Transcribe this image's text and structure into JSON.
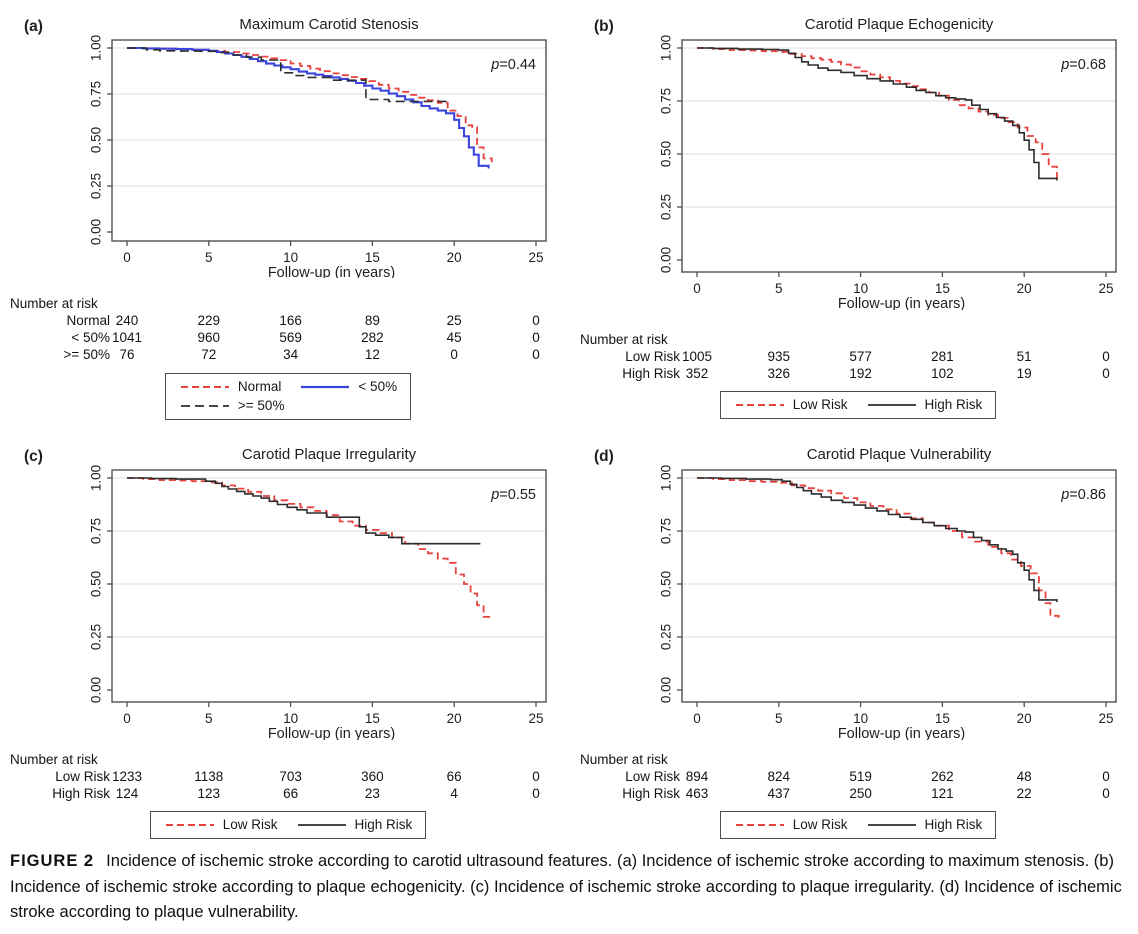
{
  "caption": {
    "label": "FIGURE 2",
    "text": "Incidence of ischemic stroke according to carotid ultrasound features. (a) Incidence of ischemic stroke according to maximum stenosis. (b) Incidence of ischemic stroke according to plaque echogenicity. (c) Incidence of ischemic stroke according to plaque irregularity. (d) Incidence of ischemic stroke according to plaque vulnerability."
  },
  "colors": {
    "red_dashed_series": "#e8413e",
    "blue_solid_series": "#3b45dd",
    "black_series": "#2d2d2d",
    "gridline": "#e3e3e3",
    "frame": "#4f4f4f"
  },
  "chart_data": [
    {
      "id": "a",
      "panel_label": "(a)",
      "type": "line",
      "title": "Maximum Carotid Stenosis",
      "p_value": "0.44",
      "xlabel": "Follow-up (in years)",
      "xticks": [
        0,
        5,
        10,
        15,
        20,
        25
      ],
      "yticks": [
        "0.00",
        "0.25",
        "0.50",
        "0.75",
        "1.00"
      ],
      "xlim": [
        0,
        25
      ],
      "ylim": [
        0,
        1
      ],
      "grid": true,
      "legend_position": "below",
      "legend_rows": [
        [
          "Normal",
          "< 50%"
        ],
        [
          ">= 50%"
        ]
      ],
      "series": [
        {
          "name": "Normal",
          "color": "#e8413e",
          "dash": "7 4",
          "width": 1.8,
          "x": [
            0,
            1,
            2,
            3,
            4,
            5,
            6,
            7,
            7.6,
            8.2,
            8.8,
            9.4,
            10,
            10.6,
            11.2,
            11.8,
            12.4,
            13,
            13.6,
            14.2,
            14.8,
            15.4,
            16,
            16.6,
            17.2,
            17.8,
            18.4,
            19,
            19.6,
            20.2,
            20.7,
            21.1,
            21.4,
            21.8,
            22.3
          ],
          "y": [
            1,
            0.998,
            0.995,
            0.993,
            0.99,
            0.985,
            0.978,
            0.97,
            0.962,
            0.953,
            0.944,
            0.934,
            0.916,
            0.902,
            0.888,
            0.874,
            0.862,
            0.852,
            0.842,
            0.832,
            0.82,
            0.8,
            0.78,
            0.762,
            0.745,
            0.73,
            0.716,
            0.702,
            0.66,
            0.63,
            0.58,
            0.57,
            0.46,
            0.4,
            0.38
          ]
        },
        {
          "name": "< 50%",
          "color": "#3b45dd",
          "dash": null,
          "width": 2.1,
          "x": [
            0,
            1,
            2,
            3,
            4,
            5,
            5.5,
            6,
            6.5,
            7,
            7.5,
            8,
            8.5,
            9,
            9.5,
            10,
            10.5,
            11,
            11.5,
            12,
            12.5,
            13,
            13.5,
            14,
            14.5,
            15,
            15.5,
            16,
            16.5,
            17,
            17.5,
            18,
            18.5,
            19,
            19.5,
            20,
            20.3,
            20.6,
            20.9,
            21.2,
            21.5,
            22.1
          ],
          "y": [
            1,
            0.998,
            0.996,
            0.994,
            0.99,
            0.985,
            0.978,
            0.97,
            0.962,
            0.952,
            0.94,
            0.928,
            0.915,
            0.905,
            0.895,
            0.885,
            0.872,
            0.862,
            0.855,
            0.848,
            0.84,
            0.832,
            0.822,
            0.81,
            0.795,
            0.78,
            0.768,
            0.752,
            0.738,
            0.72,
            0.705,
            0.685,
            0.672,
            0.66,
            0.645,
            0.61,
            0.565,
            0.52,
            0.46,
            0.42,
            0.36,
            0.345
          ]
        },
        {
          "name": ">= 50%",
          "color": "#2d2d2d",
          "dash": "9 5",
          "width": 1.6,
          "x": [
            0,
            1.2,
            2,
            3,
            4.5,
            5.5,
            6.5,
            7.3,
            8.2,
            9.2,
            9.4,
            10.2,
            11,
            12.2,
            12.4,
            14.4,
            14.6,
            16,
            19.7
          ],
          "y": [
            1,
            0.99,
            0.985,
            0.983,
            0.982,
            0.975,
            0.962,
            0.95,
            0.935,
            0.93,
            0.865,
            0.85,
            0.84,
            0.84,
            0.825,
            0.825,
            0.72,
            0.71,
            0.71
          ]
        }
      ],
      "number_at_risk": {
        "header": "Number at risk",
        "rows": [
          {
            "label": "Normal",
            "values": [
              "240",
              "229",
              "166",
              "89",
              "25",
              "0"
            ]
          },
          {
            "label": "< 50%",
            "values": [
              "1041",
              "960",
              "569",
              "282",
              "45",
              "0"
            ]
          },
          {
            "label": ">= 50%",
            "values": [
              "76",
              "72",
              "34",
              "12",
              "0",
              "0"
            ]
          }
        ]
      }
    },
    {
      "id": "b",
      "panel_label": "(b)",
      "type": "line",
      "title": "Carotid Plaque Echogenicity",
      "p_value": "0.68",
      "xlabel": "Follow-up (in years)",
      "xticks": [
        0,
        5,
        10,
        15,
        20,
        25
      ],
      "yticks": [
        "0.00",
        "0.25",
        "0.50",
        "0.75",
        "1.00"
      ],
      "xlim": [
        0,
        25
      ],
      "ylim": [
        0,
        1
      ],
      "grid": true,
      "legend_position": "below",
      "legend_rows": [
        [
          "Low Risk",
          "High Risk"
        ]
      ],
      "series": [
        {
          "name": "Low Risk",
          "color": "#e8413e",
          "dash": "7 4",
          "width": 1.8,
          "x": [
            0,
            1,
            2,
            3,
            4,
            5,
            5.7,
            6.4,
            7,
            7.6,
            8.2,
            8.8,
            9.4,
            10,
            10.6,
            11.2,
            11.8,
            12.4,
            13,
            13.6,
            14.2,
            14.8,
            15.4,
            16,
            16.6,
            17.2,
            17.8,
            18.4,
            19,
            19.6,
            20.2,
            20.7,
            21.1,
            21.5,
            22
          ],
          "y": [
            1,
            0.995,
            0.99,
            0.988,
            0.985,
            0.982,
            0.972,
            0.962,
            0.952,
            0.945,
            0.935,
            0.922,
            0.908,
            0.89,
            0.875,
            0.862,
            0.845,
            0.832,
            0.82,
            0.805,
            0.79,
            0.775,
            0.755,
            0.73,
            0.715,
            0.7,
            0.685,
            0.67,
            0.65,
            0.625,
            0.585,
            0.555,
            0.5,
            0.44,
            0.37
          ]
        },
        {
          "name": "High Risk",
          "color": "#2d2d2d",
          "dash": null,
          "width": 1.6,
          "x": [
            0,
            1,
            2.5,
            4,
            5,
            5.6,
            6,
            6.4,
            6.8,
            7.4,
            8,
            8.8,
            9.6,
            10.4,
            11.2,
            12,
            12.8,
            13.4,
            14,
            14.6,
            15.2,
            15.8,
            16.4,
            16.8,
            17.3,
            17.8,
            18.3,
            18.8,
            19.3,
            19.7,
            20,
            20.3,
            20.6,
            20.9,
            22
          ],
          "y": [
            1,
            0.998,
            0.995,
            0.993,
            0.99,
            0.975,
            0.955,
            0.935,
            0.92,
            0.905,
            0.895,
            0.885,
            0.87,
            0.855,
            0.845,
            0.83,
            0.815,
            0.8,
            0.79,
            0.775,
            0.765,
            0.76,
            0.755,
            0.73,
            0.71,
            0.69,
            0.672,
            0.655,
            0.635,
            0.6,
            0.565,
            0.52,
            0.46,
            0.385,
            0.375
          ]
        }
      ],
      "number_at_risk": {
        "header": "Number at risk",
        "rows": [
          {
            "label": "Low Risk",
            "values": [
              "1005",
              "935",
              "577",
              "281",
              "51",
              "0"
            ]
          },
          {
            "label": "High Risk",
            "values": [
              "352",
              "326",
              "192",
              "102",
              "19",
              "0"
            ]
          }
        ]
      }
    },
    {
      "id": "c",
      "panel_label": "(c)",
      "type": "line",
      "title": "Carotid Plaque Irregularity",
      "p_value": "0.55",
      "xlabel": "Follow-up (in years)",
      "xticks": [
        0,
        5,
        10,
        15,
        20,
        25
      ],
      "yticks": [
        "0.00",
        "0.25",
        "0.50",
        "0.75",
        "1.00"
      ],
      "xlim": [
        0,
        25
      ],
      "ylim": [
        0,
        1
      ],
      "grid": true,
      "legend_position": "below",
      "legend_rows": [
        [
          "Low Risk",
          "High Risk"
        ]
      ],
      "series": [
        {
          "name": "Low Risk",
          "color": "#e8413e",
          "dash": "7 4",
          "width": 1.8,
          "x": [
            0,
            1,
            2,
            3,
            4,
            5,
            5.8,
            6.6,
            7.4,
            8.2,
            9,
            9.8,
            10.6,
            11.4,
            12.2,
            13,
            13.8,
            14.6,
            15.4,
            16.2,
            17,
            17.8,
            18.4,
            19,
            19.6,
            20.1,
            20.6,
            21,
            21.4,
            21.8,
            22.3
          ],
          "y": [
            1,
            0.995,
            0.99,
            0.988,
            0.985,
            0.98,
            0.965,
            0.95,
            0.935,
            0.915,
            0.895,
            0.878,
            0.862,
            0.845,
            0.825,
            0.795,
            0.775,
            0.755,
            0.74,
            0.72,
            0.69,
            0.665,
            0.645,
            0.62,
            0.6,
            0.545,
            0.5,
            0.455,
            0.4,
            0.345,
            0.34
          ]
        },
        {
          "name": "High Risk",
          "color": "#2d2d2d",
          "dash": null,
          "width": 1.6,
          "x": [
            0,
            1.5,
            3,
            4.8,
            5.4,
            5.8,
            6.2,
            6.7,
            7.2,
            7.7,
            8.2,
            8.7,
            9.2,
            9.8,
            10.4,
            11,
            12.2,
            14.2,
            14.6,
            15.2,
            16,
            16.8,
            21.6
          ],
          "y": [
            1,
            0.997,
            0.995,
            0.985,
            0.975,
            0.96,
            0.948,
            0.937,
            0.925,
            0.915,
            0.905,
            0.89,
            0.875,
            0.862,
            0.85,
            0.835,
            0.815,
            0.77,
            0.74,
            0.73,
            0.72,
            0.69,
            0.69
          ]
        }
      ],
      "number_at_risk": {
        "header": "Number at risk",
        "rows": [
          {
            "label": "Low Risk",
            "values": [
              "1233",
              "1138",
              "703",
              "360",
              "66",
              "0"
            ]
          },
          {
            "label": "High Risk",
            "values": [
              "124",
              "123",
              "66",
              "23",
              "4",
              "0"
            ]
          }
        ]
      }
    },
    {
      "id": "d",
      "panel_label": "(d)",
      "type": "line",
      "title": "Carotid Plaque Vulnerability",
      "p_value": "0.86",
      "xlabel": "Follow-up (in years)",
      "xticks": [
        0,
        5,
        10,
        15,
        20,
        25
      ],
      "yticks": [
        "0.00",
        "0.25",
        "0.50",
        "0.75",
        "1.00"
      ],
      "xlim": [
        0,
        25
      ],
      "ylim": [
        0,
        1
      ],
      "grid": true,
      "legend_position": "below",
      "legend_rows": [
        [
          "Low Risk",
          "High Risk"
        ]
      ],
      "series": [
        {
          "name": "Low Risk",
          "color": "#e8413e",
          "dash": "7 4",
          "width": 1.8,
          "x": [
            0,
            1,
            2,
            3,
            4,
            5,
            5.8,
            6.6,
            7.4,
            8.2,
            9,
            9.8,
            10.6,
            11.4,
            12.2,
            13,
            13.8,
            14.6,
            15.4,
            16.2,
            17,
            17.8,
            18.6,
            19.2,
            19.8,
            20.4,
            20.9,
            21.3,
            21.6,
            22.1
          ],
          "y": [
            1,
            0.995,
            0.99,
            0.985,
            0.982,
            0.978,
            0.965,
            0.952,
            0.94,
            0.928,
            0.905,
            0.885,
            0.868,
            0.852,
            0.832,
            0.81,
            0.79,
            0.775,
            0.75,
            0.72,
            0.7,
            0.675,
            0.645,
            0.615,
            0.585,
            0.55,
            0.47,
            0.41,
            0.35,
            0.34
          ]
        },
        {
          "name": "High Risk",
          "color": "#2d2d2d",
          "dash": null,
          "width": 1.6,
          "x": [
            0,
            1.5,
            3,
            4.5,
            5.2,
            5.7,
            6.1,
            6.5,
            7,
            7.6,
            8.2,
            8.9,
            9.6,
            10.3,
            11,
            11.7,
            12.4,
            13.1,
            13.8,
            14.5,
            15.2,
            15.9,
            16.4,
            16.9,
            17.4,
            17.9,
            18.4,
            18.9,
            19.3,
            19.6,
            20,
            20.3,
            20.6,
            20.9,
            22
          ],
          "y": [
            1,
            0.998,
            0.995,
            0.992,
            0.985,
            0.97,
            0.955,
            0.94,
            0.925,
            0.91,
            0.895,
            0.885,
            0.872,
            0.858,
            0.845,
            0.828,
            0.815,
            0.805,
            0.79,
            0.775,
            0.762,
            0.75,
            0.745,
            0.72,
            0.705,
            0.685,
            0.665,
            0.655,
            0.64,
            0.6,
            0.565,
            0.52,
            0.47,
            0.425,
            0.415
          ]
        }
      ],
      "number_at_risk": {
        "header": "Number at risk",
        "rows": [
          {
            "label": "Low Risk",
            "values": [
              "894",
              "824",
              "519",
              "262",
              "48",
              "0"
            ]
          },
          {
            "label": "High Risk",
            "values": [
              "463",
              "437",
              "250",
              "121",
              "22",
              "0"
            ]
          }
        ]
      }
    }
  ]
}
